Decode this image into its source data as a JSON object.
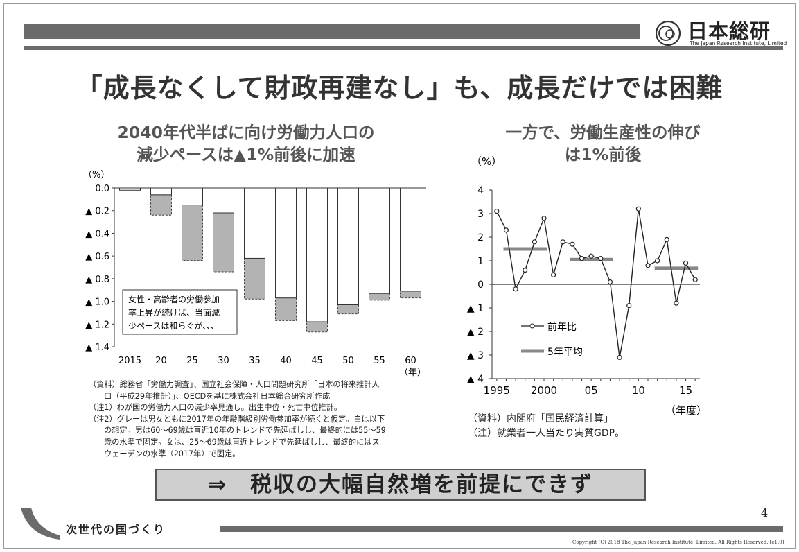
{
  "header": {
    "logo_text": "日本総研",
    "logo_sub": "The Japan Research Institute, Limited"
  },
  "title": "「成長なくして財政再建なし」も、成長だけでは困難",
  "left": {
    "subtitle_line1": "2040年代半ばに向け労働力人口の",
    "subtitle_line2": "減少ペースは▲1%前後に加速",
    "notes": [
      "（資料）総務省「労働力調査」、国立社会保障・人口問題研究所「日本の将来推計人",
      "口（平成29年推計）」、OECDを基に株式会社日本総合研究所作成",
      "（注1）わが国の労働力人口の減少率見通し。出生中位・死亡中位推計。",
      "（注2）グレーは男女ともに2017年の年齢階級別労働参加率が続くと仮定。白は以下",
      "の想定。男は60～69歳は直近10年のトレンドで先延ばしし、最終的には55～59",
      "歳の水準で固定。女は、25～69歳は直近トレンドで先延ばしし、最終的にはス",
      "ウェーデンの水準（2017年）で固定。"
    ]
  },
  "right": {
    "subtitle_line1": "一方で、労働生産性の伸び",
    "subtitle_line2": "は1%前後",
    "notes": [
      "（資料）内閣府「国民経済計算」",
      "（注）就業者一人当たり実質GDP。"
    ]
  },
  "conclusion": "⇒　税収の大幅自然増を前提にできず",
  "footer": {
    "page_number": "4",
    "tagline": "次世代の国づくり",
    "copyright": "Copyright (C) 2018 The Japan Research Institute, Limited. All Rights Reserved. [e1.0]"
  },
  "chart_data": [
    {
      "type": "bar",
      "ylabel": "（%）",
      "xlabel": "（年）",
      "categories": [
        "2015",
        "20",
        "25",
        "30",
        "35",
        "40",
        "45",
        "50",
        "55",
        "60"
      ],
      "ylim": [
        0.0,
        1.4
      ],
      "yticks": [
        "0.0",
        "▲ 0.2",
        "▲ 0.4",
        "▲ 0.6",
        "▲ 0.8",
        "▲ 1.0",
        "▲ 1.2",
        "▲ 1.4"
      ],
      "series": [
        {
          "name": "白",
          "color": "#ffffff",
          "values": [
            0.02,
            0.06,
            0.15,
            0.22,
            0.62,
            0.97,
            1.18,
            1.03,
            0.93,
            0.91
          ]
        },
        {
          "name": "グレー",
          "color": "#b3b3b3",
          "values": [
            0.02,
            0.24,
            0.64,
            0.74,
            0.98,
            1.17,
            1.27,
            1.11,
            0.99,
            0.97
          ]
        }
      ],
      "annotation": [
        "女性・高齢者の労働参加",
        "率上昇が続けば、当面減",
        "少ペースは和らぐが、、、"
      ]
    },
    {
      "type": "line",
      "ylabel": "（%）",
      "xlabel": "（年度）",
      "ylim": [
        -4,
        4
      ],
      "yticks": [
        "4",
        "3",
        "2",
        "1",
        "0",
        "▲ 1",
        "▲ 2",
        "▲ 3",
        "▲ 4"
      ],
      "xticks": [
        "1995",
        "2000",
        "05",
        "10",
        "15"
      ],
      "series": [
        {
          "name": "前年比",
          "x": [
            1995,
            1996,
            1997,
            1998,
            1999,
            2000,
            2001,
            2002,
            2003,
            2004,
            2005,
            2006,
            2007,
            2008,
            2009,
            2010,
            2011,
            2012,
            2013,
            2014,
            2015,
            2016
          ],
          "values": [
            3.1,
            2.3,
            -0.2,
            0.6,
            1.8,
            2.8,
            0.4,
            1.8,
            1.7,
            1.1,
            1.2,
            1.1,
            0.1,
            -3.1,
            -0.9,
            3.2,
            0.8,
            1.0,
            1.9,
            -0.8,
            0.9,
            0.2
          ]
        },
        {
          "name": "5年平均",
          "color": "#888888",
          "segments": [
            {
              "x": [
                1996,
                2000
              ],
              "value": 1.5
            },
            {
              "x": [
                2003,
                2007
              ],
              "value": 1.05
            },
            {
              "x": [
                2012,
                2016
              ],
              "value": 0.68
            }
          ]
        }
      ]
    }
  ]
}
